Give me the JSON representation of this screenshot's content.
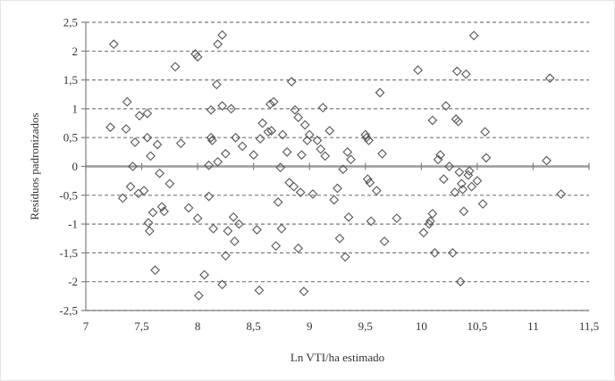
{
  "chart_data": {
    "type": "scatter",
    "title": "",
    "xlabel": "Ln VTI/ha estimado",
    "ylabel": "Resíduos padronizados",
    "xlim": [
      7,
      11.5
    ],
    "ylim": [
      -2.5,
      2.5
    ],
    "x_ticks": [
      "7",
      "7,5",
      "8",
      "8,5",
      "9",
      "9,5",
      "10",
      "10,5",
      "11",
      "11,5"
    ],
    "y_ticks": [
      "2,5",
      "2",
      "1,5",
      "1",
      "0,5",
      "0",
      "-0,5",
      "-1",
      "-1,5",
      "-2",
      "-2,5"
    ],
    "grid": true,
    "marker": "diamond",
    "points": [
      [
        7.25,
        2.12
      ],
      [
        7.22,
        0.68
      ],
      [
        7.33,
        -0.55
      ],
      [
        7.36,
        0.65
      ],
      [
        7.37,
        1.12
      ],
      [
        7.4,
        -0.35
      ],
      [
        7.42,
        0.0
      ],
      [
        7.44,
        0.42
      ],
      [
        7.48,
        0.88
      ],
      [
        7.47,
        -0.47
      ],
      [
        7.52,
        -0.42
      ],
      [
        7.55,
        0.92
      ],
      [
        7.55,
        0.5
      ],
      [
        7.56,
        -0.98
      ],
      [
        7.57,
        -1.12
      ],
      [
        7.58,
        0.18
      ],
      [
        7.6,
        -0.8
      ],
      [
        7.62,
        -1.8
      ],
      [
        7.64,
        0.38
      ],
      [
        7.66,
        -0.12
      ],
      [
        7.68,
        -0.7
      ],
      [
        7.7,
        -0.78
      ],
      [
        7.75,
        -0.3
      ],
      [
        7.8,
        1.73
      ],
      [
        7.85,
        0.4
      ],
      [
        7.92,
        -0.72
      ],
      [
        7.98,
        1.95
      ],
      [
        8.0,
        1.9
      ],
      [
        8.0,
        -0.9
      ],
      [
        8.01,
        -2.24
      ],
      [
        8.06,
        -1.88
      ],
      [
        8.1,
        0.02
      ],
      [
        8.1,
        -0.52
      ],
      [
        8.12,
        0.98
      ],
      [
        8.12,
        0.5
      ],
      [
        8.13,
        0.45
      ],
      [
        8.14,
        -1.08
      ],
      [
        8.17,
        1.42
      ],
      [
        8.18,
        2.12
      ],
      [
        8.18,
        0.08
      ],
      [
        8.22,
        2.28
      ],
      [
        8.22,
        1.05
      ],
      [
        8.22,
        -2.05
      ],
      [
        8.25,
        -1.55
      ],
      [
        8.25,
        0.22
      ],
      [
        8.27,
        -1.12
      ],
      [
        8.3,
        1.0
      ],
      [
        8.32,
        -0.88
      ],
      [
        8.33,
        -1.3
      ],
      [
        8.34,
        0.5
      ],
      [
        8.37,
        -1.0
      ],
      [
        8.4,
        0.35
      ],
      [
        8.5,
        0.2
      ],
      [
        8.53,
        -1.1
      ],
      [
        8.55,
        -2.15
      ],
      [
        8.56,
        0.48
      ],
      [
        8.58,
        0.75
      ],
      [
        8.63,
        0.6
      ],
      [
        8.65,
        1.08
      ],
      [
        8.66,
        0.62
      ],
      [
        8.68,
        1.12
      ],
      [
        8.7,
        -1.38
      ],
      [
        8.72,
        -0.62
      ],
      [
        8.74,
        -0.02
      ],
      [
        8.75,
        -1.08
      ],
      [
        8.76,
        0.55
      ],
      [
        8.8,
        0.25
      ],
      [
        8.82,
        -0.28
      ],
      [
        8.84,
        1.47
      ],
      [
        8.86,
        -0.35
      ],
      [
        8.87,
        0.98
      ],
      [
        8.9,
        0.85
      ],
      [
        8.9,
        -1.42
      ],
      [
        8.92,
        -0.45
      ],
      [
        8.93,
        0.2
      ],
      [
        8.95,
        -2.17
      ],
      [
        8.96,
        0.72
      ],
      [
        8.98,
        0.45
      ],
      [
        9.0,
        0.55
      ],
      [
        9.03,
        -0.48
      ],
      [
        9.07,
        0.45
      ],
      [
        9.1,
        0.3
      ],
      [
        9.12,
        1.02
      ],
      [
        9.14,
        0.18
      ],
      [
        9.18,
        0.62
      ],
      [
        9.22,
        -0.58
      ],
      [
        9.25,
        -0.38
      ],
      [
        9.27,
        -1.25
      ],
      [
        9.3,
        -0.05
      ],
      [
        9.32,
        -1.57
      ],
      [
        9.34,
        0.25
      ],
      [
        9.35,
        -0.88
      ],
      [
        9.37,
        0.12
      ],
      [
        9.5,
        0.55
      ],
      [
        9.51,
        0.5
      ],
      [
        9.52,
        -0.22
      ],
      [
        9.53,
        0.45
      ],
      [
        9.54,
        -0.28
      ],
      [
        9.55,
        -0.95
      ],
      [
        9.6,
        -0.42
      ],
      [
        9.63,
        1.28
      ],
      [
        9.65,
        0.22
      ],
      [
        9.67,
        -1.3
      ],
      [
        9.78,
        -0.9
      ],
      [
        9.97,
        1.67
      ],
      [
        10.02,
        -1.15
      ],
      [
        10.07,
        -1.0
      ],
      [
        10.08,
        -0.95
      ],
      [
        10.1,
        -0.82
      ],
      [
        10.1,
        0.8
      ],
      [
        10.12,
        -1.5
      ],
      [
        10.15,
        0.12
      ],
      [
        10.17,
        0.2
      ],
      [
        10.2,
        -0.22
      ],
      [
        10.22,
        1.05
      ],
      [
        10.25,
        0.0
      ],
      [
        10.28,
        -1.5
      ],
      [
        10.3,
        -0.45
      ],
      [
        10.31,
        0.82
      ],
      [
        10.32,
        1.65
      ],
      [
        10.33,
        0.78
      ],
      [
        10.34,
        -0.1
      ],
      [
        10.35,
        -2.0
      ],
      [
        10.36,
        -0.3
      ],
      [
        10.37,
        -0.4
      ],
      [
        10.38,
        -0.78
      ],
      [
        10.4,
        1.6
      ],
      [
        10.42,
        -0.15
      ],
      [
        10.43,
        -0.08
      ],
      [
        10.45,
        -0.35
      ],
      [
        10.47,
        2.27
      ],
      [
        10.5,
        -0.25
      ],
      [
        10.55,
        -0.65
      ],
      [
        10.57,
        0.6
      ],
      [
        10.58,
        0.15
      ],
      [
        11.12,
        0.1
      ],
      [
        11.15,
        1.53
      ],
      [
        11.25,
        -0.48
      ]
    ]
  }
}
